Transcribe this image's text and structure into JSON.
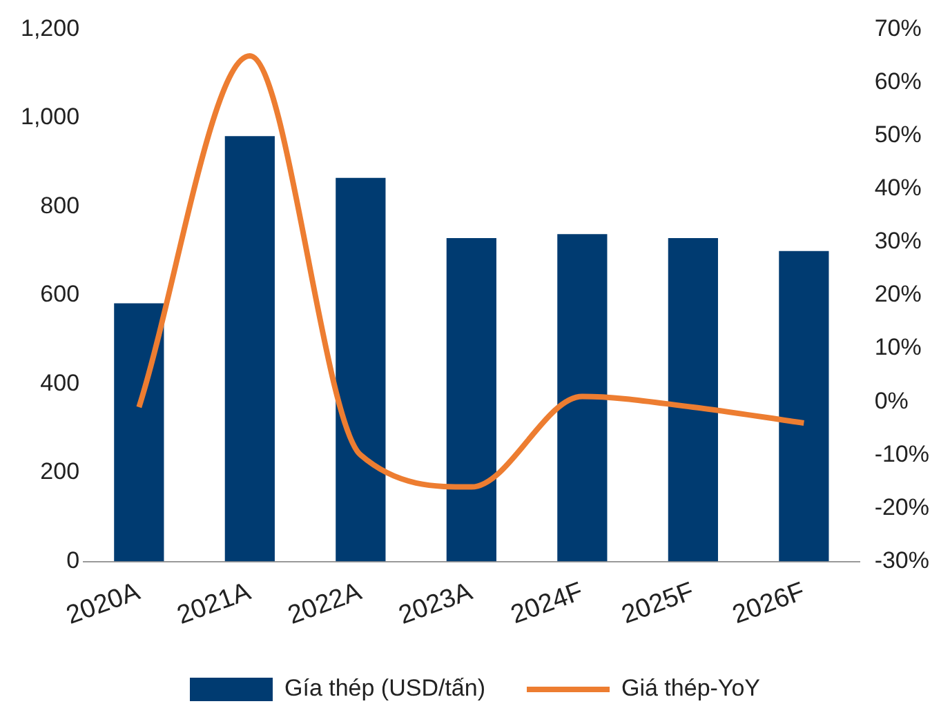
{
  "chart_data": {
    "type": "bar",
    "categories": [
      "2020A",
      "2021A",
      "2022A",
      "2023A",
      "2024F",
      "2025F",
      "2026F"
    ],
    "series": [
      {
        "name": "Gía thép (USD/tấn)",
        "color": "#003b71",
        "values": [
          582,
          959,
          865,
          729,
          738,
          729,
          700
        ]
      },
      {
        "name": "Giá thép-YoY",
        "type": "line",
        "axis": "y2",
        "color": "#ed7d31",
        "values": [
          -1,
          65,
          -10,
          -16,
          1,
          -1,
          -4
        ]
      }
    ],
    "ylim": [
      0,
      1200
    ],
    "yticks": [
      0,
      200,
      400,
      600,
      800,
      {
        "value": 1000,
        "label": "1,000"
      },
      {
        "value": 1200,
        "label": "1,200"
      }
    ],
    "y2lim": [
      -30,
      70
    ],
    "y2ticks": [
      {
        "value": -30,
        "label": "-30%"
      },
      {
        "value": -20,
        "label": "-20%"
      },
      {
        "value": -10,
        "label": "-10%"
      },
      {
        "value": 0,
        "label": "0%"
      },
      {
        "value": 10,
        "label": "10%"
      },
      {
        "value": 20,
        "label": "20%"
      },
      {
        "value": 30,
        "label": "30%"
      },
      {
        "value": 40,
        "label": "40%"
      },
      {
        "value": 50,
        "label": "50%"
      },
      {
        "value": 60,
        "label": "60%"
      },
      {
        "value": 70,
        "label": "70%"
      }
    ],
    "legend": "bottom",
    "marker": "none"
  }
}
